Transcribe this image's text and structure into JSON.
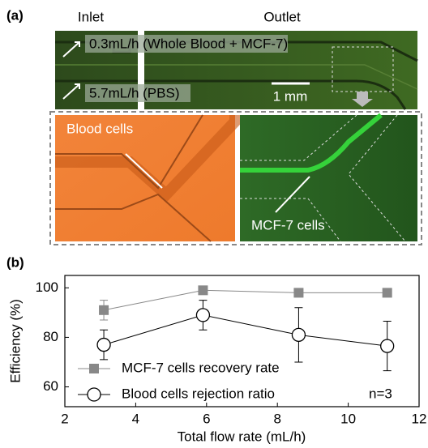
{
  "panel_labels": [
    "(a)",
    "(b)"
  ],
  "micrograph": {
    "inlet": "Inlet",
    "outlet": "Outlet",
    "flow_top": "0.3mL/h (Whole Blood + MCF-7)",
    "flow_bottom": "5.7mL/h (PBS)",
    "scale_bar": "1 mm",
    "blood_label": "Blood cells",
    "mcf_label": "MCF-7 cells"
  },
  "chart_data": {
    "type": "errorline",
    "xlabel": "Total flow rate (mL/h)",
    "ylabel": "Efficiency (%)",
    "annotation": "n=3",
    "x": [
      3.1,
      5.9,
      8.6,
      11.1
    ],
    "series": [
      {
        "name": "MCF-7 cells recovery rate",
        "color": "#888888",
        "marker": "square",
        "values": [
          91,
          99,
          98,
          98
        ],
        "errors": [
          4,
          1,
          1,
          1
        ]
      },
      {
        "name": "Blood cells rejection ratio",
        "color": "#000000",
        "marker": "circle",
        "values": [
          77,
          89,
          81,
          76.5
        ],
        "errors": [
          6,
          6,
          11,
          10
        ]
      }
    ],
    "xlim": [
      2,
      12
    ],
    "xticks": [
      2,
      4,
      6,
      8,
      10,
      12
    ],
    "ylim": [
      52,
      105
    ],
    "yticks": [
      60,
      80,
      100
    ],
    "legend": "lower-left"
  }
}
